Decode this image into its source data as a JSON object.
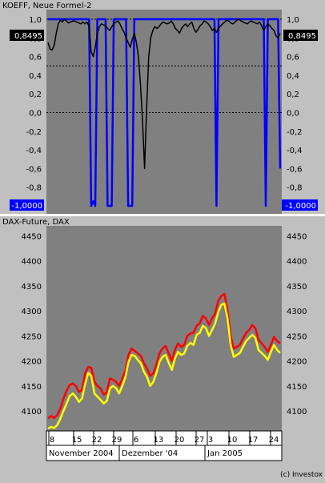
{
  "colors": {
    "background": "#c0c0c0",
    "plot_background": "#808080",
    "koeff_line": "#0000ff",
    "formel_line": "#000000",
    "dax_high": "#ff0000",
    "dax_low": "#ffff00",
    "value_badge_bg": "#000000",
    "min_badge_bg": "#0000ff"
  },
  "footer": {
    "credit": "(c) Investox"
  },
  "chart_data": [
    {
      "type": "line",
      "title": "KOEFF, Neue Formel-2",
      "ylim": [
        -1.0,
        1.0
      ],
      "y_ticks": [
        "1,0",
        "0,8",
        "0,6",
        "0,4",
        "0,2",
        "0,0",
        "-0,2",
        "-0,4",
        "-0,6",
        "-0,8"
      ],
      "dotted_reference_lines": [
        1.0,
        0.5,
        0.0
      ],
      "current_value_label": "0,8495",
      "min_value_label": "-1,0000",
      "grid": false,
      "series": [
        {
          "role": "blue-binary",
          "values": [
            1,
            1,
            1,
            1,
            1,
            1,
            1,
            1,
            1,
            1,
            1,
            1,
            1,
            1,
            1,
            1,
            1,
            1,
            1,
            1,
            1,
            -1,
            -0.95,
            -1,
            1,
            1,
            1,
            1,
            1,
            -1,
            -1,
            -1,
            1,
            1,
            1,
            1,
            1,
            1,
            1,
            -1,
            -1,
            -1,
            1,
            1,
            1,
            1,
            1,
            1,
            1,
            1,
            1,
            1,
            1,
            1,
            1,
            1,
            1,
            1,
            1,
            1,
            1,
            1,
            1,
            1,
            1,
            1,
            1,
            1,
            1,
            1,
            1,
            1,
            1,
            1,
            1,
            1,
            1,
            1,
            1,
            1,
            1,
            1,
            -1,
            1,
            1,
            1,
            1,
            1,
            1,
            1,
            1,
            1,
            1,
            1,
            1,
            1,
            1,
            1,
            1,
            1,
            1,
            1,
            1,
            1,
            1,
            1,
            -1,
            1,
            1,
            1,
            1,
            1,
            1,
            -0.6
          ]
        },
        {
          "role": "black-koeff",
          "values": [
            0.75,
            0.68,
            0.67,
            0.72,
            0.85,
            0.95,
            0.99,
            0.97,
            1,
            0.98,
            0.96,
            0.97,
            0.98,
            0.98,
            0.97,
            0.96,
            0.95,
            0.97,
            0.95,
            0.97,
            0.92,
            0.65,
            0.6,
            0.7,
            0.85,
            0.92,
            0.95,
            0.94,
            0.93,
            0.9,
            0.88,
            0.92,
            0.95,
            0.97,
            0.98,
            0.95,
            0.9,
            0.86,
            0.8,
            0.75,
            0.7,
            0.78,
            0.85,
            0.75,
            0.6,
            0.3,
            -0.1,
            -0.6,
            0.05,
            0.6,
            0.8,
            0.88,
            0.92,
            0.9,
            0.92,
            0.95,
            0.97,
            0.96,
            0.95,
            0.96,
            0.98,
            0.95,
            0.9,
            0.88,
            0.85,
            0.9,
            0.93,
            0.95,
            0.92,
            0.95,
            0.97,
            0.9,
            0.86,
            0.89,
            0.93,
            0.95,
            0.98,
            0.97,
            0.95,
            0.92,
            0.88,
            0.9,
            0.86,
            0.9,
            0.93,
            0.95,
            0.97,
            0.99,
            0.98,
            0.96,
            0.95,
            0.97,
            0.99,
            1,
            0.98,
            0.97,
            0.96,
            0.95,
            0.97,
            0.98,
            0.97,
            0.96,
            0.95,
            0.97,
            0.93,
            0.88,
            0.92,
            0.95,
            0.93,
            0.9,
            0.88,
            0.82,
            0.8,
            0.8495
          ]
        }
      ]
    },
    {
      "type": "line",
      "title": "DAX-Future, DAX",
      "ylim": [
        4060,
        4470
      ],
      "y_ticks": [
        "4450",
        "4400",
        "4350",
        "4300",
        "4250",
        "4200",
        "4150",
        "4100"
      ],
      "grid": false,
      "x_day_labels": [
        "8",
        "15",
        "22",
        "29",
        "6",
        "13",
        "20",
        "27",
        "3",
        "10",
        "17",
        "24"
      ],
      "x_month_labels": [
        "November 2004",
        "Dezember '04",
        "Jan 2005"
      ],
      "series": [
        {
          "role": "red-high",
          "values": [
            4085,
            4090,
            4086,
            4092,
            4105,
            4125,
            4140,
            4152,
            4155,
            4150,
            4138,
            4142,
            4176,
            4188,
            4186,
            4158,
            4150,
            4145,
            4132,
            4138,
            4165,
            4162,
            4158,
            4150,
            4165,
            4180,
            4212,
            4225,
            4220,
            4215,
            4210,
            4195,
            4185,
            4170,
            4175,
            4192,
            4215,
            4225,
            4230,
            4215,
            4200,
            4222,
            4235,
            4228,
            4232,
            4250,
            4255,
            4256,
            4270,
            4275,
            4290,
            4285,
            4272,
            4285,
            4295,
            4320,
            4330,
            4334,
            4300,
            4250,
            4225,
            4228,
            4232,
            4245,
            4256,
            4262,
            4272,
            4265,
            4242,
            4235,
            4228,
            4218,
            4232,
            4248,
            4240,
            4235
          ]
        },
        {
          "role": "yellow-low",
          "values": [
            4065,
            4068,
            4066,
            4072,
            4085,
            4100,
            4115,
            4130,
            4135,
            4128,
            4118,
            4125,
            4155,
            4176,
            4170,
            4135,
            4128,
            4122,
            4115,
            4120,
            4145,
            4150,
            4145,
            4135,
            4150,
            4168,
            4198,
            4212,
            4210,
            4202,
            4195,
            4178,
            4168,
            4150,
            4158,
            4175,
            4198,
            4208,
            4212,
            4196,
            4182,
            4205,
            4218,
            4212,
            4215,
            4230,
            4236,
            4232,
            4252,
            4256,
            4270,
            4266,
            4250,
            4262,
            4275,
            4298,
            4312,
            4315,
            4285,
            4232,
            4208,
            4212,
            4216,
            4228,
            4240,
            4246,
            4252,
            4246,
            4222,
            4216,
            4210,
            4202,
            4218,
            4232,
            4222,
            4216
          ]
        }
      ]
    }
  ]
}
